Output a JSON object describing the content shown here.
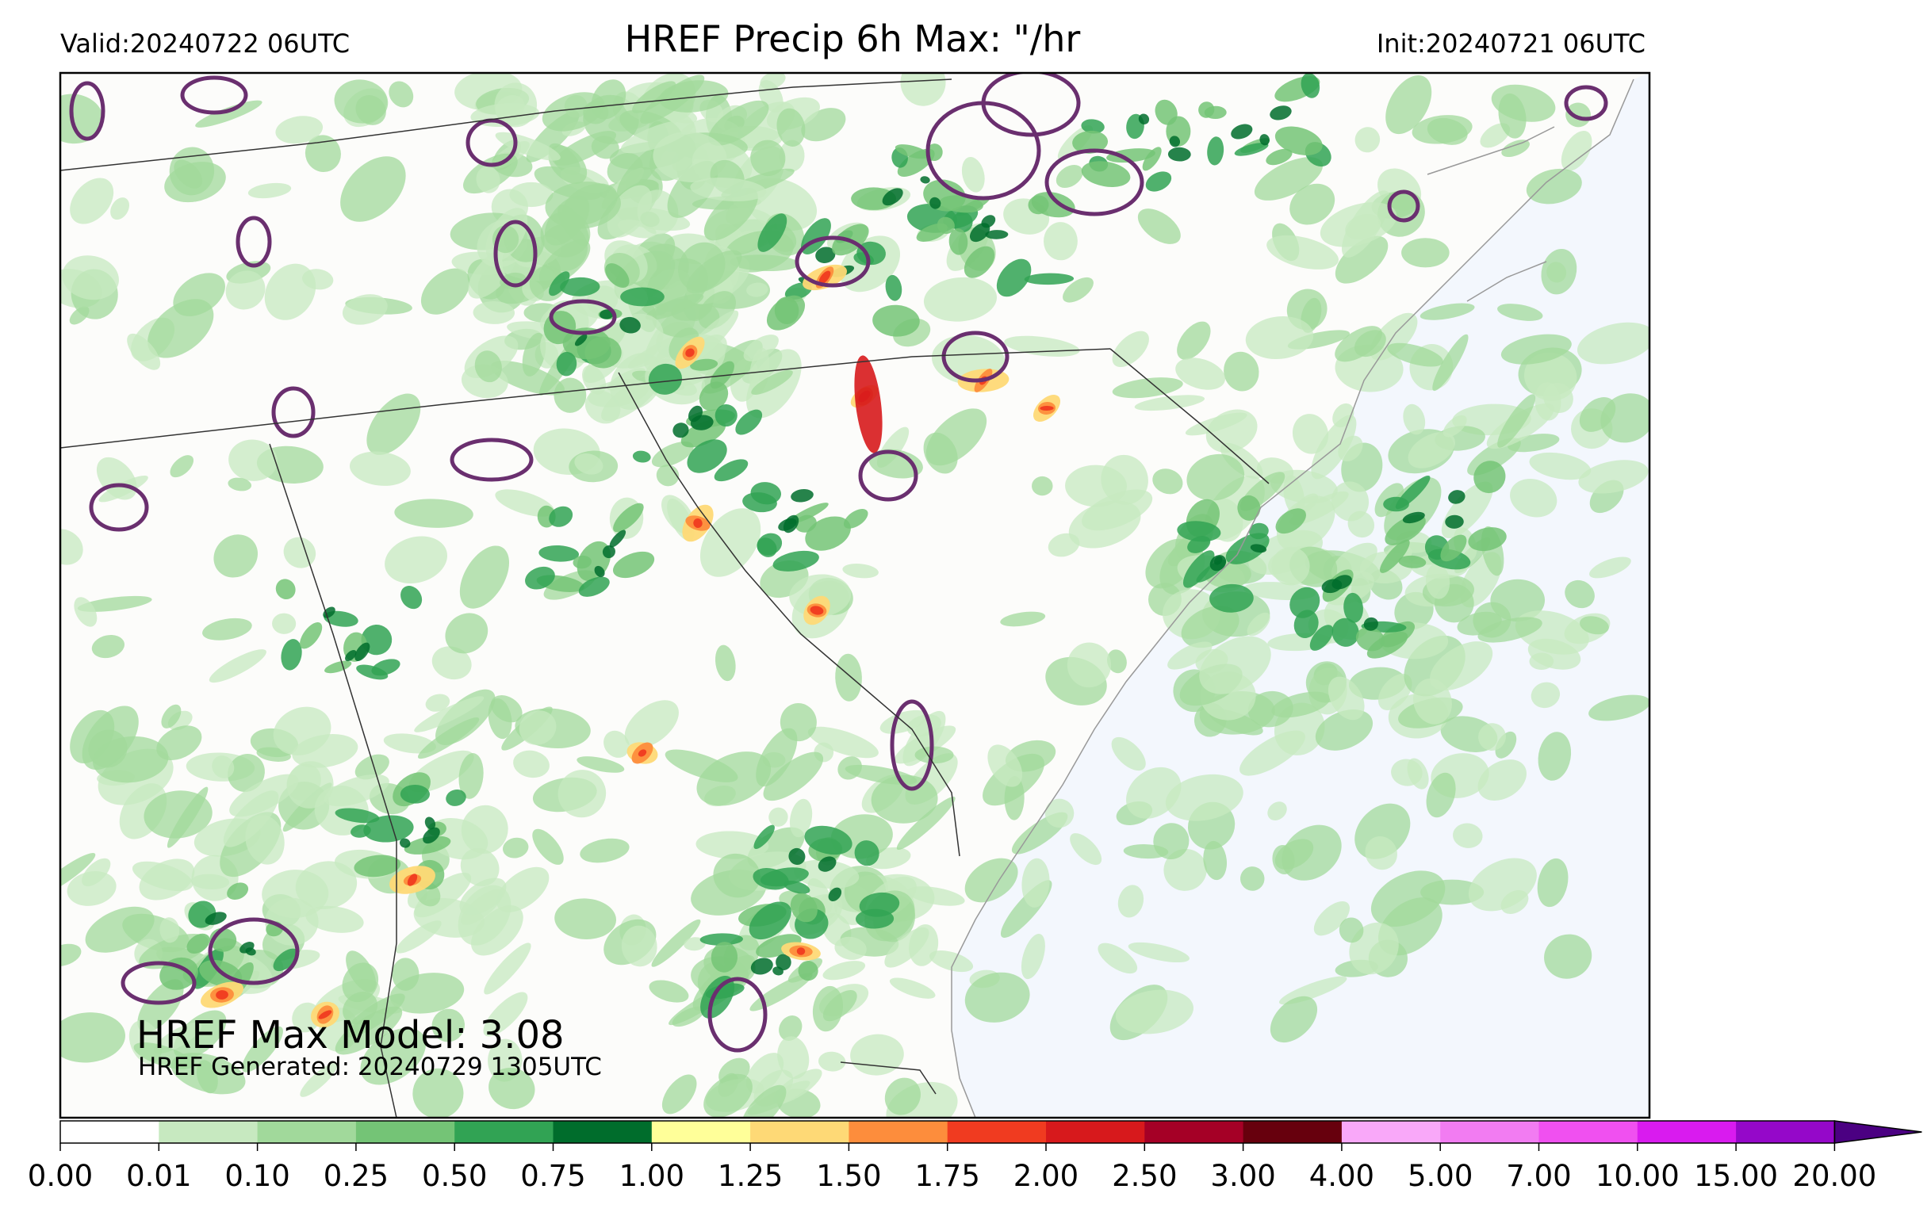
{
  "header": {
    "valid": "Valid:20240722 06UTC",
    "title": "HREF Precip 6h Max: \"/hr",
    "init": "Init:20240721 06UTC"
  },
  "annotations": {
    "max_model": "HREF Max Model: 3.08",
    "generated": "HREF Generated: 20240729 1305UTC"
  },
  "colorbar": {
    "ticks": [
      "0.00",
      "0.01",
      "0.10",
      "0.25",
      "0.50",
      "0.75",
      "1.00",
      "1.25",
      "1.50",
      "1.75",
      "2.00",
      "2.50",
      "3.00",
      "4.00",
      "5.00",
      "7.00",
      "10.00",
      "15.00",
      "20.00"
    ],
    "colors": [
      "#ffffff",
      "#c7e9c0",
      "#a1d99b",
      "#74c476",
      "#31a354",
      "#006d2c",
      "#ffff99",
      "#fed976",
      "#fd8d3c",
      "#f03b20",
      "#d7191c",
      "#a50026",
      "#67000d",
      "#f9a8f9",
      "#f27cf2",
      "#f050f0",
      "#d91bef",
      "#9508c9"
    ],
    "extend_color": "#4b0082"
  },
  "colors": {
    "land": "#fcfcfa",
    "ocean": "#f3f7fd",
    "contour": "#6a2f6f",
    "border": "#333333"
  }
}
